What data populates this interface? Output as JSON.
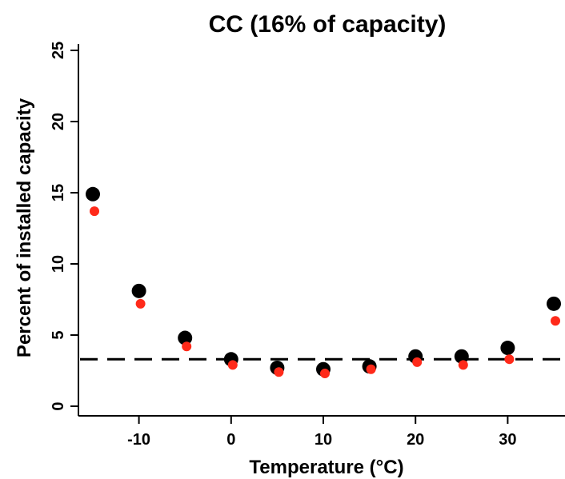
{
  "chart_data": {
    "type": "scatter",
    "title": "CC (16% of capacity)",
    "xlabel": "Temperature (°C)",
    "ylabel": "Percent of installed capacity",
    "xlim": [
      -17,
      36
    ],
    "ylim": [
      -1,
      26
    ],
    "x_ticks": [
      -10,
      0,
      10,
      20,
      30
    ],
    "y_ticks": [
      0,
      5,
      10,
      15,
      20,
      25
    ],
    "x_tick_labels": [
      "-10",
      "0",
      "10",
      "20",
      "30"
    ],
    "y_tick_labels": [
      "0",
      "5",
      "10",
      "15",
      "20",
      "25"
    ],
    "reference_line": {
      "y": 3.3,
      "style": "dashed",
      "color": "#000000"
    },
    "series": [
      {
        "color": "#000000",
        "marker": "large-circle",
        "x": [
          -15,
          -10,
          -5,
          0,
          5,
          10,
          15,
          20,
          25,
          30,
          35
        ],
        "y": [
          14.9,
          8.1,
          4.8,
          3.3,
          2.7,
          2.6,
          2.8,
          3.5,
          3.5,
          4.1,
          7.2
        ]
      },
      {
        "color": "#ff2a1a",
        "marker": "small-circle",
        "x": [
          -15,
          -10,
          -5,
          0,
          5,
          10,
          15,
          20,
          25,
          30,
          35
        ],
        "y": [
          13.7,
          7.2,
          4.2,
          2.9,
          2.4,
          2.3,
          2.6,
          3.1,
          2.9,
          3.3,
          6.0
        ]
      }
    ],
    "grid": false,
    "legend": "none"
  }
}
